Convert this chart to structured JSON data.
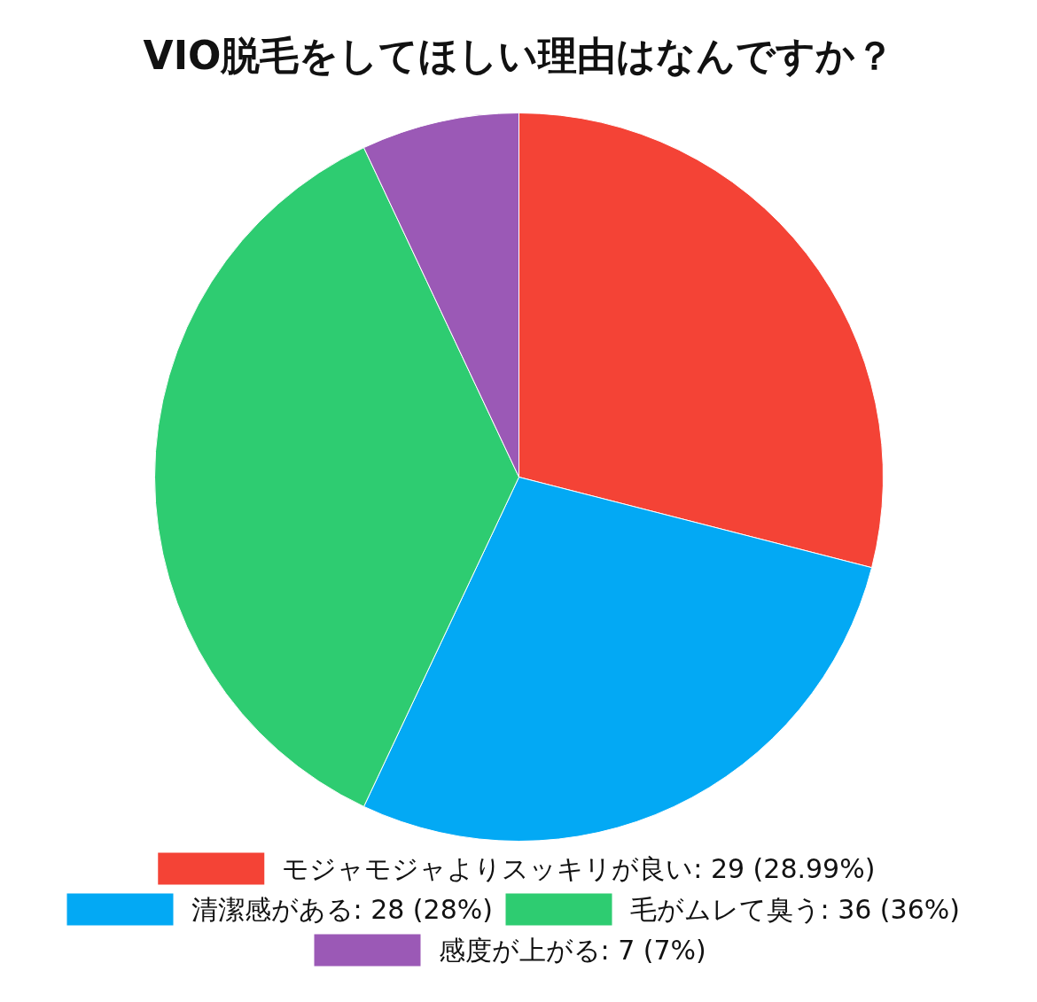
{
  "chart_data": {
    "type": "pie",
    "title": "VIO脱毛をしてほしい理由はなんですか？",
    "categories": [
      "モジャモジャよりスッキリが良い",
      "清潔感がある",
      "毛がムレて臭う",
      "感度が上がる"
    ],
    "values": [
      29,
      28,
      36,
      7
    ],
    "value_labels": [
      "29 (28.99%)",
      "28 (28%)",
      "36 (36%)",
      "7 (7%)"
    ],
    "colors": [
      "#f44336",
      "#03a9f4",
      "#2ecc71",
      "#9b59b6"
    ],
    "legend": "bottom"
  }
}
